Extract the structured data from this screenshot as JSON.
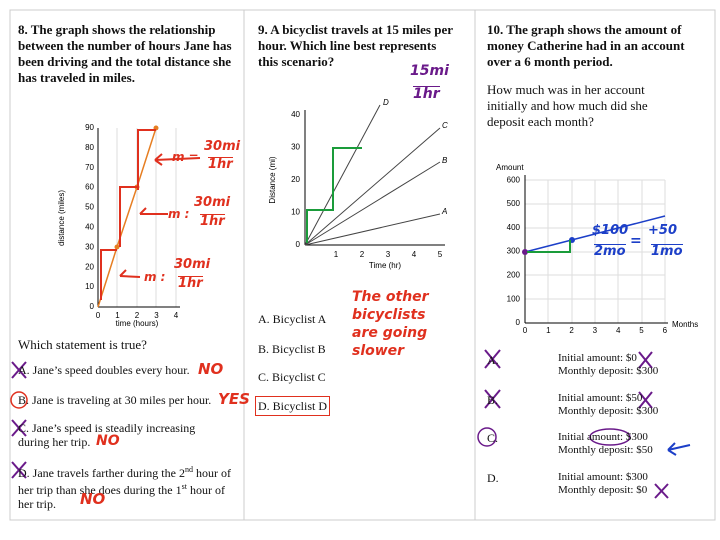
{
  "problems": [
    {
      "number": "8.",
      "prompt": "The graph shows the relationship between the number of hours Jane has been driving and the total distance she has traveled in miles.",
      "graph": {
        "y_label": "distance (miles)",
        "x_label": "time (hours)",
        "yticks": [
          "0",
          "10",
          "20",
          "30",
          "40",
          "50",
          "60",
          "70",
          "80",
          "90"
        ],
        "xticks": [
          "0",
          "1",
          "2",
          "3",
          "4"
        ]
      },
      "question": "Which statement is true?",
      "options": [
        {
          "letter": "A.",
          "text": "Jane’s speed doubles every hour.",
          "mark": "NO"
        },
        {
          "letter": "B.",
          "text": "Jane is traveling at 30 miles per hour.",
          "mark": "YES"
        },
        {
          "letter": "C.",
          "text": "Jane’s speed is steadily increasing during her trip.",
          "mark": "NO"
        },
        {
          "letter": "D.",
          "text": [
            "Jane travels farther during the 2",
            "nd",
            " hour of her trip than she does during the 1",
            "st",
            " hour of her trip."
          ],
          "mark": "NO"
        }
      ],
      "annotations": [
        {
          "slope": "m =",
          "top": "30mi",
          "bottom": "1hr"
        },
        {
          "slope": "m :",
          "top": "30mi",
          "bottom": "1hr"
        },
        {
          "slope": "m :",
          "top": "30mi",
          "bottom": "1hr"
        }
      ]
    },
    {
      "number": "9.",
      "prompt": "A bicyclist travels at 15 miles per hour. Which line best represents this scenario?",
      "graph": {
        "y_label": "Distance (mi)",
        "x_label": "Time (hr)",
        "yticks": [
          "0",
          "10",
          "20",
          "30",
          "40"
        ],
        "xticks": [
          "1",
          "2",
          "3",
          "4",
          "5"
        ],
        "lines": [
          "D",
          "C",
          "B",
          "A"
        ]
      },
      "options": [
        {
          "letter": "A.",
          "text": "Bicyclist A"
        },
        {
          "letter": "B.",
          "text": "Bicyclist B"
        },
        {
          "letter": "C.",
          "text": "Bicyclist C"
        },
        {
          "letter": "D.",
          "text": "Bicyclist D"
        }
      ],
      "annotations": {
        "rate_top": "15mi",
        "rate_bottom": "1hr",
        "note": "The other bicyclists are going slower"
      }
    },
    {
      "number": "10.",
      "prompt": "The graph shows the amount of money Catherine had in an account over a 6 month period.",
      "question": "How much was in her account initially and how much did she deposit each month?",
      "graph": {
        "y_label": "Amount",
        "x_label": "Months",
        "yticks": [
          "0",
          "100",
          "200",
          "300",
          "400",
          "500",
          "600"
        ],
        "xticks": [
          "0",
          "1",
          "2",
          "3",
          "4",
          "5",
          "6"
        ]
      },
      "options": [
        {
          "letter": "A.",
          "initial": "Initial amount: $0",
          "deposit": "Monthly deposit: $300"
        },
        {
          "letter": "B.",
          "initial": "Initial amount: $50",
          "deposit": "Monthly deposit: $300"
        },
        {
          "letter": "C.",
          "initial": "Initial amount: $300",
          "deposit": "Monthly deposit: $50"
        },
        {
          "letter": "D.",
          "initial": "Initial amount: $300",
          "deposit": "Monthly deposit: $0"
        }
      ],
      "annotations": {
        "top_left": "$100",
        "bottom_left": "2mo",
        "equals": "=",
        "top_right": "+50",
        "bottom_right": "1mo"
      }
    }
  ]
}
